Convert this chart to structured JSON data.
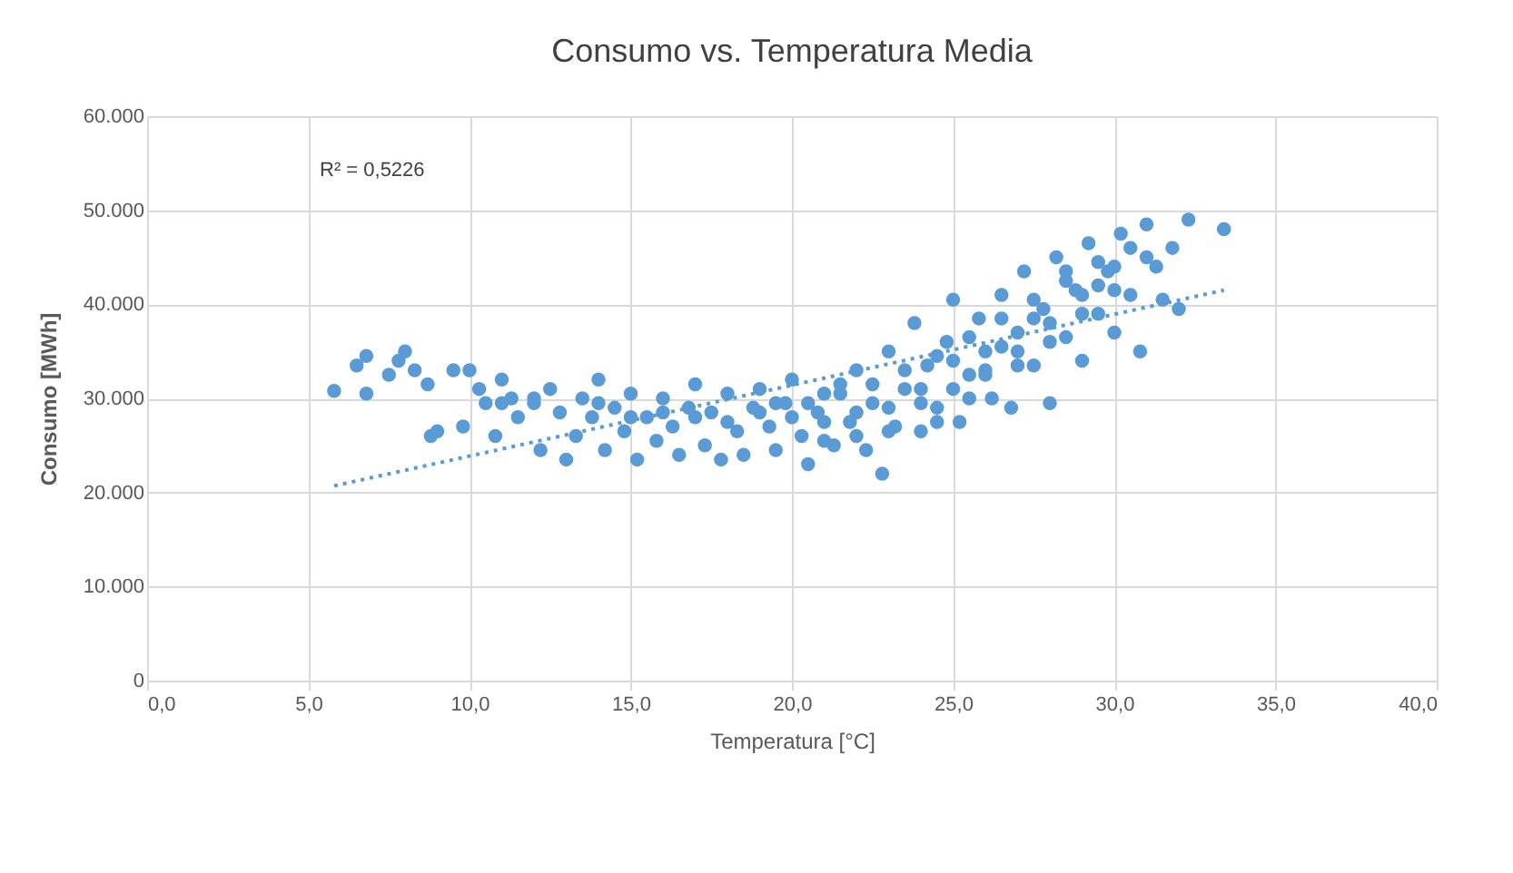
{
  "chart_data": {
    "type": "scatter",
    "title": "Consumo vs. Temperatura Media",
    "xlabel": "Temperatura [°C]",
    "ylabel": "Consumo [MWh]",
    "annotations": [
      "R² = 0,5226"
    ],
    "xlim": [
      0,
      40
    ],
    "ylim": [
      0,
      60000
    ],
    "xticks": [
      {
        "value": 0,
        "label": "0,0"
      },
      {
        "value": 5,
        "label": "5,0"
      },
      {
        "value": 10,
        "label": "10,0"
      },
      {
        "value": 15,
        "label": "15,0"
      },
      {
        "value": 20,
        "label": "20,0"
      },
      {
        "value": 25,
        "label": "25,0"
      },
      {
        "value": 30,
        "label": "30,0"
      },
      {
        "value": 35,
        "label": "35,0"
      },
      {
        "value": 40,
        "label": "40,0"
      }
    ],
    "yticks": [
      0,
      {
        "value": 10000,
        "label": "10.000"
      },
      {
        "value": 20000,
        "label": "20.000"
      },
      {
        "value": 30000,
        "label": "30.000"
      },
      {
        "value": 40000,
        "label": "40.000"
      },
      {
        "value": 50000,
        "label": "50.000"
      },
      {
        "value": 60000,
        "label": "60.000"
      }
    ],
    "grid": true,
    "series": [
      {
        "type": "scatter",
        "marker": "circle",
        "color": "#5b9bd5",
        "x": [
          24.5,
          25.5,
          26.5,
          27.5,
          28.5,
          29.5,
          30.5,
          23.5,
          22.5,
          21.5,
          20.5,
          24.0,
          25.0,
          26.0,
          27.0,
          28.0,
          29.0,
          30.0,
          31.0,
          26.5,
          27.5,
          28.5,
          29.5,
          25.5,
          24.5,
          23.0,
          22.0,
          21.0,
          18.0,
          16.0,
          14.0,
          12.0,
          11.0,
          15.0,
          17.0,
          19.5,
          5.8,
          6.5,
          6.8,
          6.8,
          7.5,
          7.8,
          8.0,
          8.3,
          8.7,
          8.8,
          9.0,
          9.5,
          9.8,
          10.0,
          10.3,
          10.5,
          10.8,
          11.0,
          11.3,
          11.5,
          12.0,
          12.2,
          12.5,
          12.8,
          13.0,
          13.3,
          13.5,
          13.8,
          14.0,
          14.2,
          14.5,
          14.8,
          15.0,
          15.2,
          15.5,
          15.8,
          16.0,
          16.3,
          16.5,
          16.8,
          17.0,
          17.3,
          17.5,
          17.8,
          18.0,
          18.3,
          18.5,
          18.8,
          19.0,
          19.3,
          19.5,
          19.8,
          20.0,
          20.3,
          20.5,
          20.8,
          21.0,
          21.3,
          21.5,
          21.8,
          22.0,
          22.3,
          22.5,
          22.8,
          23.0,
          23.2,
          23.5,
          23.8,
          24.0,
          24.2,
          24.5,
          24.8,
          25.0,
          25.2,
          25.5,
          25.8,
          26.0,
          26.2,
          26.5,
          26.8,
          27.0,
          27.2,
          27.5,
          27.8,
          28.0,
          28.2,
          28.5,
          28.8,
          29.0,
          29.2,
          29.5,
          29.8,
          30.0,
          30.2,
          30.5,
          30.8,
          31.0,
          31.3,
          31.5,
          31.8,
          32.0,
          32.3,
          33.4,
          23.0,
          24.0,
          25.0,
          26.0,
          27.0,
          28.0,
          29.0,
          30.0,
          22.0,
          21.0,
          20.0,
          19.0
        ],
        "values": [
          34500,
          36500,
          38500,
          40500,
          42500,
          44500,
          46000,
          33000,
          31500,
          30500,
          29500,
          29500,
          31000,
          32500,
          33500,
          36000,
          39000,
          41500,
          45000,
          35500,
          38500,
          43500,
          42000,
          30000,
          27500,
          26500,
          26000,
          25500,
          27500,
          28500,
          29500,
          30000,
          29500,
          28000,
          28000,
          29500,
          30800,
          33500,
          34500,
          30500,
          32500,
          34000,
          35000,
          33000,
          31500,
          26000,
          26500,
          33000,
          27000,
          33000,
          31000,
          29500,
          26000,
          32000,
          30000,
          28000,
          29500,
          24500,
          31000,
          28500,
          23500,
          26000,
          30000,
          28000,
          32000,
          24500,
          29000,
          26500,
          30500,
          23500,
          28000,
          25500,
          30000,
          27000,
          24000,
          29000,
          31500,
          25000,
          28500,
          23500,
          30500,
          26500,
          24000,
          29000,
          31000,
          27000,
          24500,
          29500,
          32000,
          26000,
          23000,
          28500,
          30500,
          25000,
          31500,
          27500,
          33000,
          24500,
          29500,
          22000,
          35000,
          27000,
          31000,
          38000,
          26500,
          33500,
          29000,
          36000,
          40500,
          27500,
          32500,
          38500,
          35000,
          30000,
          41000,
          29000,
          37000,
          43500,
          33500,
          39500,
          29500,
          45000,
          36500,
          41500,
          34000,
          46500,
          39000,
          43500,
          37000,
          47500,
          41000,
          35000,
          48500,
          44000,
          40500,
          46000,
          39500,
          49000,
          48000,
          29000,
          31000,
          34000,
          33000,
          35000,
          38000,
          41000,
          44000,
          28500,
          27500,
          28000,
          28500
        ]
      },
      {
        "type": "line",
        "marker": "none",
        "color": "#5b9bd5",
        "line_style": "dotted",
        "x": [
          5.8,
          33.4
        ],
        "values": [
          20700,
          41500
        ]
      }
    ]
  }
}
